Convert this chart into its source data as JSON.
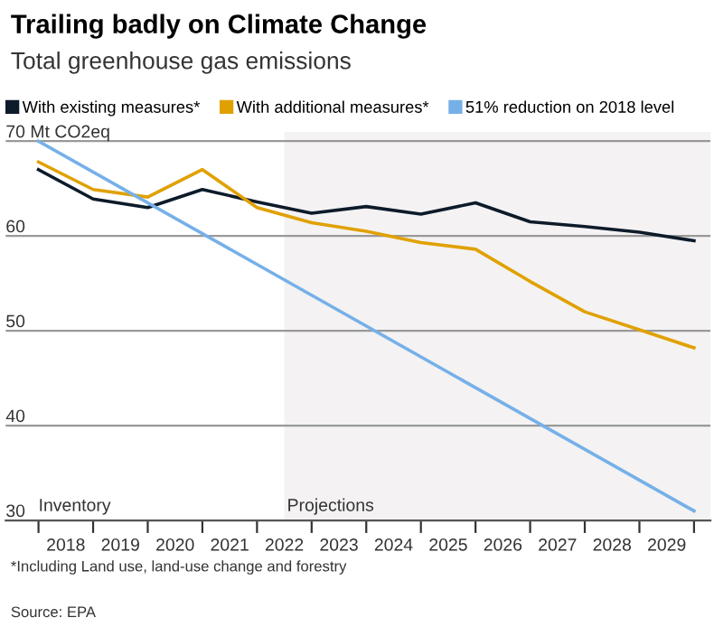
{
  "chart_data": {
    "type": "line",
    "title": "Trailing badly on Climate Change",
    "subtitle": "Total greenhouse gas emissions",
    "x": [
      2018,
      2019,
      2020,
      2021,
      2022,
      2023,
      2024,
      2025,
      2026,
      2027,
      2028,
      2029,
      2030
    ],
    "series": [
      {
        "name": "With existing measures*",
        "color": "#0d1b2a",
        "values": [
          67.0,
          63.9,
          63.0,
          64.9,
          63.6,
          62.4,
          63.1,
          62.3,
          63.5,
          61.5,
          61.0,
          60.4,
          59.5
        ]
      },
      {
        "name": "With additional measures*",
        "color": "#e0a100",
        "values": [
          67.8,
          64.9,
          64.1,
          67.0,
          63.0,
          61.4,
          60.5,
          59.3,
          58.6,
          55.2,
          52.0,
          50.1,
          48.2
        ]
      },
      {
        "name": "51% reduction on 2018 level",
        "color": "#76b0e8",
        "x": [
          2018,
          2030
        ],
        "values": [
          70,
          31
        ]
      }
    ],
    "xlim": [
      2017.4,
      2030.3
    ],
    "xticks": [
      {
        "value": 2018,
        "label": null
      },
      {
        "value": 2018.5,
        "label": "2018"
      },
      {
        "value": 2019,
        "label": null
      },
      {
        "value": 2019.5,
        "label": "2019"
      },
      {
        "value": 2020,
        "label": null
      },
      {
        "value": 2020.5,
        "label": "2020"
      },
      {
        "value": 2021,
        "label": null
      },
      {
        "value": 2021.5,
        "label": "2021"
      },
      {
        "value": 2022,
        "label": null
      },
      {
        "value": 2022.5,
        "label": "2022"
      },
      {
        "value": 2023,
        "label": null
      },
      {
        "value": 2023.5,
        "label": "2023"
      },
      {
        "value": 2024,
        "label": null
      },
      {
        "value": 2024.5,
        "label": "2024"
      },
      {
        "value": 2025,
        "label": null
      },
      {
        "value": 2025.5,
        "label": "2025"
      },
      {
        "value": 2026,
        "label": null
      },
      {
        "value": 2026.5,
        "label": "2026"
      },
      {
        "value": 2027,
        "label": null
      },
      {
        "value": 2027.5,
        "label": "2027"
      },
      {
        "value": 2028,
        "label": null
      },
      {
        "value": 2028.5,
        "label": "2028"
      },
      {
        "value": 2029,
        "label": null
      },
      {
        "value": 2029.5,
        "label": "2029"
      },
      {
        "value": 2030,
        "label": null
      }
    ],
    "ylim": [
      30,
      71
    ],
    "yticks": [
      30,
      40,
      50,
      {
        "value": 60,
        "label": "60"
      },
      {
        "value": 70,
        "label": "70 Mt CO2eq"
      }
    ],
    "bands": [
      {
        "axis": "x",
        "from": 2022.5,
        "to": 2030.3,
        "label": "Projections",
        "color": "#f4f2f3"
      }
    ],
    "annotations": [
      "Inventory",
      "*Including Land use, land-use change and forestry",
      "Source: EPA"
    ],
    "grid": "y",
    "legend": "top left",
    "marker": "none",
    "line_style": "solid"
  }
}
